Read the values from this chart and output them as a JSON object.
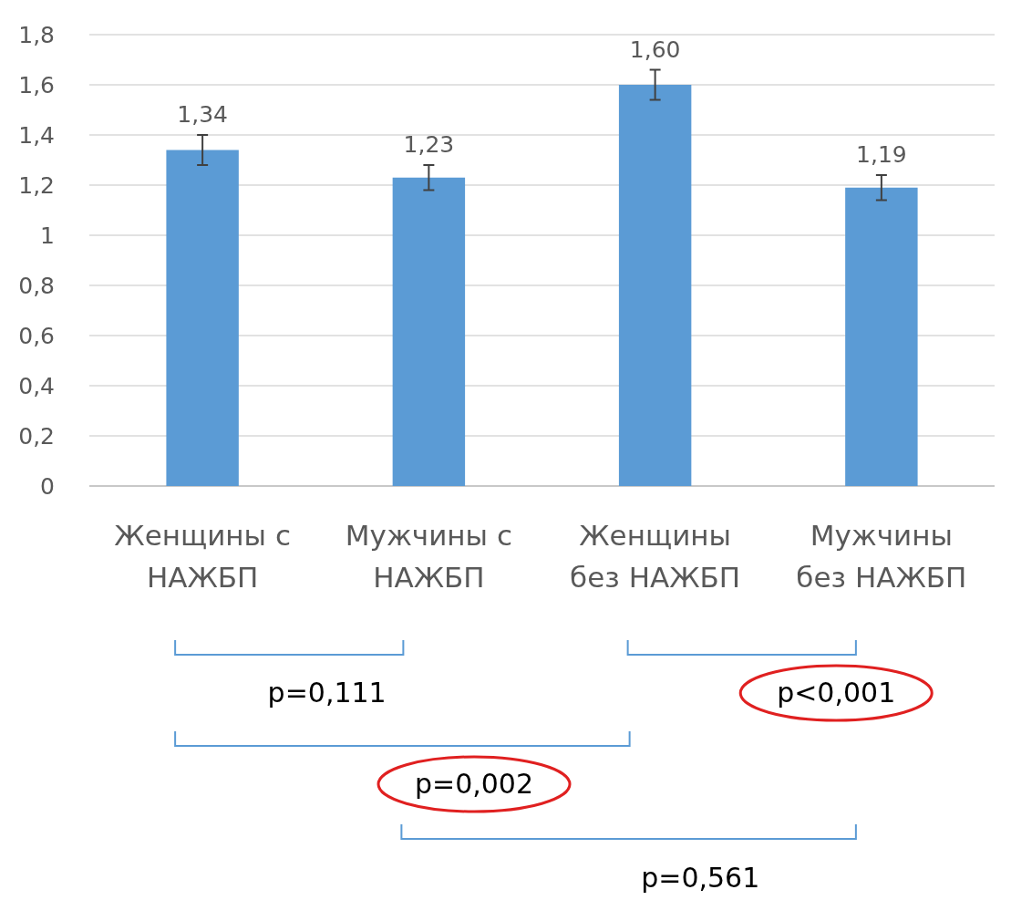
{
  "chart_data": {
    "type": "bar",
    "categories": [
      "Женщины с НАЖБП",
      "Мужчины с НАЖБП",
      "Женщины без НАЖБП",
      "Мужчины без НАЖБП"
    ],
    "values": [
      1.34,
      1.23,
      1.6,
      1.19
    ],
    "errors": [
      0.06,
      0.05,
      0.06,
      0.05
    ],
    "value_labels": [
      "1,34",
      "1,23",
      "1,60",
      "1,19"
    ],
    "color": "#5b9bd5",
    "ylim": [
      0,
      1.8
    ],
    "yticks": [
      0,
      {
        "value": 0.2,
        "label": "0,2"
      },
      {
        "value": 0.4,
        "label": "0,4"
      },
      {
        "value": 0.6,
        "label": "0,6"
      },
      {
        "value": 0.8,
        "label": "0,8"
      },
      1,
      {
        "value": 1.2,
        "label": "1,2"
      },
      {
        "value": 1.4,
        "label": "1,4"
      },
      {
        "value": 1.6,
        "label": "1,6"
      },
      {
        "value": 1.8,
        "label": "1,8"
      }
    ],
    "grid": "y",
    "annotations": [
      "p=0,111",
      "p<0,001",
      "p=0,002",
      "p=0,561"
    ]
  }
}
